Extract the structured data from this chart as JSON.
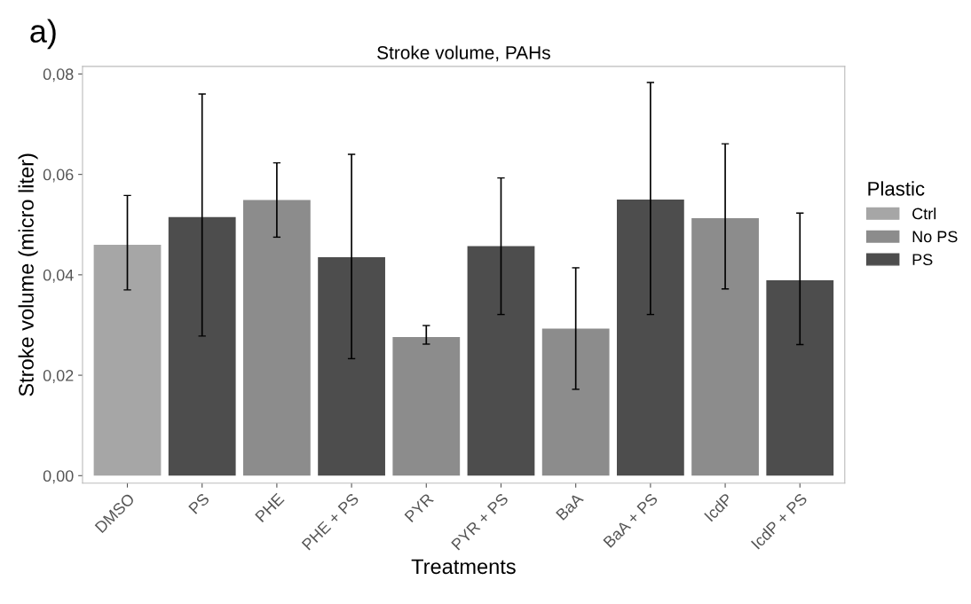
{
  "chart_data": {
    "type": "bar",
    "title": "Stroke volume, PAHs",
    "xlabel": "Treatments",
    "ylabel": "Stroke volume (micro liter)",
    "legend_title": "Plastic",
    "annotations": [
      "a)"
    ],
    "categories": [
      "DMSO",
      "PS",
      "PHE",
      "PHE + PS",
      "PYR",
      "PYR + PS",
      "BaA",
      "BaA + PS",
      "IcdP",
      "IcdP + PS"
    ],
    "series": [
      {
        "name": "Ctrl",
        "color": "#a6a6a6",
        "values": [
          0.046,
          null,
          null,
          null,
          null,
          null,
          null,
          null,
          null,
          null
        ],
        "errors": [
          [
            0.037,
            0.0558
          ],
          null,
          null,
          null,
          null,
          null,
          null,
          null,
          null,
          null
        ]
      },
      {
        "name": "No PS",
        "color": "#8c8c8c",
        "values": [
          null,
          null,
          0.0549,
          null,
          0.0276,
          null,
          0.0293,
          null,
          0.0513,
          null
        ],
        "errors": [
          null,
          null,
          [
            0.0475,
            0.0623
          ],
          null,
          [
            0.0262,
            0.0299
          ],
          null,
          [
            0.0172,
            0.0414
          ],
          null,
          [
            0.0372,
            0.0661
          ],
          null
        ]
      },
      {
        "name": "PS",
        "color": "#4d4d4d",
        "values": [
          null,
          0.0515,
          null,
          0.0435,
          null,
          0.0457,
          null,
          0.055,
          null,
          0.0389
        ],
        "errors": [
          null,
          [
            0.0278,
            0.076
          ],
          null,
          [
            0.0233,
            0.064
          ],
          null,
          [
            0.0321,
            0.0593
          ],
          null,
          [
            0.0321,
            0.0783
          ],
          null,
          [
            0.0261,
            0.0523
          ]
        ]
      }
    ],
    "ylim": [
      -0.0015,
      0.0815
    ],
    "yticks": [
      {
        "value": 0,
        "label": "0,00"
      },
      {
        "value": 0.02,
        "label": "0,02"
      },
      {
        "value": 0.04,
        "label": "0,04"
      },
      {
        "value": 0.06,
        "label": "0,06"
      },
      {
        "value": 0.08,
        "label": "0,08"
      }
    ],
    "grid": false,
    "legend": "right"
  }
}
